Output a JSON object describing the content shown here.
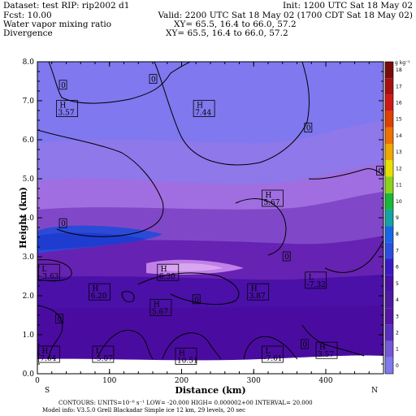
{
  "header": {
    "dataset": "Dataset: test  RIP: rip2002 d1",
    "init": "Init: 1200 UTC Sat 18 May 02",
    "fcst": "Fcst:    10.00",
    "valid": "Valid: 2200 UTC Sat 18 May 02 (1700 CDT Sat 18 May 02)",
    "field1": "Water vapor mixing ratio",
    "xy1": "XY=  65.5, 16.4 to  66.0, 57.2",
    "field2": "Divergence",
    "xy2": "XY=  65.5, 16.4 to  66.0, 57.2"
  },
  "footer": {
    "line1": "CONTOURS:  UNITS=10⁻⁶ s⁻¹   LOW=  -20.000        HIGH= 0.000002+00   INTERVAL=     20.000",
    "line2": "Model info: V3.5.0   Grell      Blackadar   Simple ice     12 km,   29 levels,    20 sec"
  },
  "colors": {
    "colorbar": [
      "#7f78ee",
      "#7358d8",
      "#5a2ec0",
      "#5614a8",
      "#4d1aa0",
      "#4a10a8",
      "#3b19c6",
      "#2a4fe0",
      "#1468e8",
      "#12a4a4",
      "#18b838",
      "#8cd41a",
      "#e8e000",
      "#f0a800",
      "#f07000",
      "#e04000",
      "#d01818",
      "#a81010",
      "#7a0c0c"
    ]
  },
  "chart_data": {
    "type": "heatmap",
    "title": "",
    "xlabel": "Distance (km)",
    "ylabel": "Height (km)",
    "xlim": [
      0,
      480
    ],
    "ylim": [
      0,
      8
    ],
    "x_ticks": [
      "0",
      "100",
      "200",
      "300",
      "400"
    ],
    "y_ticks": [
      "0.0",
      "1.0",
      "2.0",
      "3.0",
      "4.0",
      "5.0",
      "6.0",
      "7.0",
      "8.0"
    ],
    "x_end_labels": [
      "S",
      "N"
    ],
    "colorbar_labels": [
      "0",
      "1",
      "2",
      "3",
      "4",
      "5",
      "6",
      "7",
      "8",
      "9",
      "10",
      "11",
      "12",
      "13",
      "14",
      "15",
      "16",
      "17",
      "18"
    ],
    "colorbar_unit": "g kg⁻¹",
    "annotations": [
      {
        "kind": "H",
        "value": "3.57",
        "x": 40,
        "y": 6.8
      },
      {
        "kind": "H",
        "value": "7.44",
        "x": 230,
        "y": 6.8
      },
      {
        "kind": "H",
        "value": "5.67",
        "x": 325,
        "y": 4.5
      },
      {
        "kind": "L",
        "value": "-3.63",
        "x": 15,
        "y": 2.6
      },
      {
        "kind": "H",
        "value": "6.30",
        "x": 180,
        "y": 2.6
      },
      {
        "kind": "H",
        "value": "6.20",
        "x": 85,
        "y": 2.1
      },
      {
        "kind": "H",
        "value": "5.67",
        "x": 170,
        "y": 1.7
      },
      {
        "kind": "H",
        "value": "3.87",
        "x": 305,
        "y": 2.1
      },
      {
        "kind": "L",
        "value": "-7.32",
        "x": 385,
        "y": 2.4
      },
      {
        "kind": "H",
        "value": "7.64",
        "x": 15,
        "y": 0.5
      },
      {
        "kind": "L",
        "value": "-5.07",
        "x": 90,
        "y": 0.5
      },
      {
        "kind": "H",
        "value": "10.51",
        "x": 205,
        "y": 0.45
      },
      {
        "kind": "L",
        "value": "-7.61",
        "x": 325,
        "y": 0.5
      },
      {
        "kind": "H",
        "value": "3.57",
        "x": 400,
        "y": 0.6
      }
    ],
    "zero_labels": [
      {
        "x": 35,
        "y": 7.4
      },
      {
        "x": 160,
        "y": 7.55
      },
      {
        "x": 375,
        "y": 6.3
      },
      {
        "x": 475,
        "y": 5.2
      },
      {
        "x": 35,
        "y": 3.85
      },
      {
        "x": 345,
        "y": 3.0
      },
      {
        "x": 220,
        "y": 1.9
      },
      {
        "x": 30,
        "y": 1.4
      },
      {
        "x": 370,
        "y": 0.75
      }
    ]
  }
}
